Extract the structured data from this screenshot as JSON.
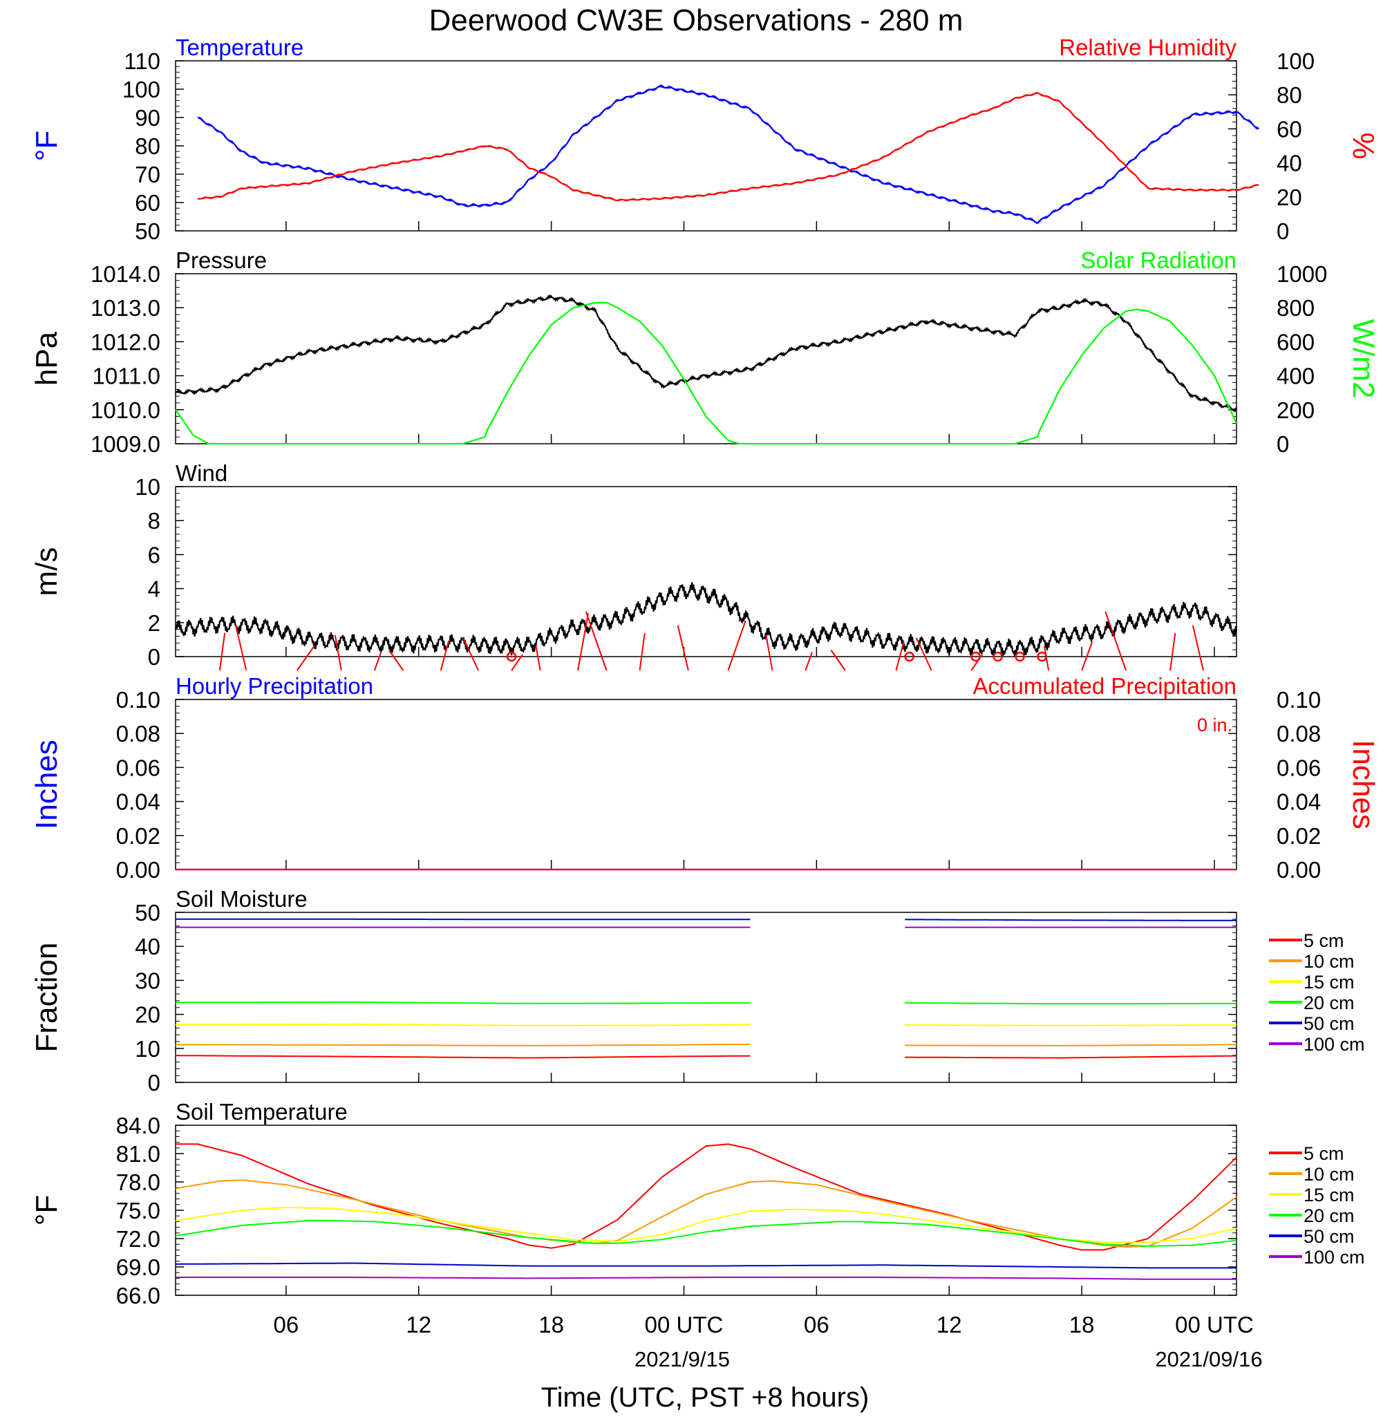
{
  "title": "Deerwood CW3E Observations - 280 m",
  "xlabel": "Time (UTC, PST +8 hours)",
  "x_ticks": [
    "06",
    "12",
    "18",
    "00 UTC",
    "06",
    "12",
    "18",
    "00 UTC"
  ],
  "x_dates": [
    "2021/9/15",
    "2021/09/16"
  ],
  "colors": {
    "blue": "#0000ff",
    "red": "#ff0000",
    "black": "#000000",
    "green": "#00ff00",
    "orange": "#ff9900",
    "yellow": "#ffff00",
    "darkblue": "#0000cc",
    "purple": "#9900cc"
  },
  "chart_data": [
    {
      "type": "line",
      "id": "temp_rh",
      "title_left": "Temperature",
      "title_right": "Relative Humidity",
      "ylabel_left": "°F",
      "ylabel_right": "%",
      "ylim": [
        50,
        110
      ],
      "y_ticks": [
        "110",
        "100",
        "90",
        "80",
        "70",
        "60",
        "50"
      ],
      "ylim_right": [
        0,
        100
      ],
      "y_ticks_right": [
        "100",
        "80",
        "60",
        "40",
        "20",
        "0"
      ],
      "x_hours": [
        1,
        2,
        3,
        4,
        6,
        8,
        10,
        12,
        13,
        14,
        15,
        16,
        17,
        18,
        20,
        22,
        24,
        26,
        28,
        30,
        32,
        34,
        36,
        37,
        38,
        39,
        40,
        42,
        44,
        46,
        48,
        49
      ],
      "series": [
        {
          "name": "Temperature",
          "axis": "left",
          "color": "#0000ff",
          "values": [
            90,
            85,
            78,
            74,
            72,
            68,
            65,
            62,
            59,
            59,
            60,
            68,
            74,
            84,
            96,
            101,
            98,
            93,
            79,
            73,
            67,
            63,
            59,
            57,
            56,
            53,
            58,
            66,
            80,
            91,
            92,
            86
          ]
        },
        {
          "name": "Relative Humidity",
          "axis": "right",
          "color": "#ff0000",
          "values": [
            19,
            20,
            25,
            26,
            28,
            35,
            40,
            44,
            47,
            50,
            48,
            37,
            32,
            24,
            18,
            19,
            21,
            25,
            28,
            33,
            43,
            58,
            68,
            72,
            78,
            81,
            76,
            51,
            25,
            24,
            24,
            27
          ]
        }
      ]
    },
    {
      "type": "line",
      "id": "pressure_solar",
      "title_left": "Pressure",
      "title_right": "Solar Radiation",
      "ylabel_left": "hPa",
      "ylabel_right": "W/m2",
      "ylim": [
        1009,
        1014
      ],
      "y_ticks": [
        "1014.0",
        "1013.0",
        "1012.0",
        "1011.0",
        "1010.0",
        "1009.0"
      ],
      "ylim_right": [
        0,
        1000
      ],
      "y_ticks_right": [
        "1000",
        "800",
        "600",
        "400",
        "200",
        "0"
      ],
      "series": [
        {
          "name": "Pressure",
          "axis": "left",
          "color": "#000000",
          "x_hours": [
            0,
            2,
            4,
            6,
            8,
            10,
            12,
            14,
            15,
            16,
            17,
            18,
            19,
            20,
            22,
            24,
            26,
            28,
            30,
            32,
            34,
            36,
            38,
            39,
            40,
            41,
            42,
            43,
            44,
            46,
            48
          ],
          "values": [
            1010.5,
            1010.6,
            1011.3,
            1011.7,
            1011.9,
            1012.1,
            1012.0,
            1012.5,
            1013.1,
            1013.2,
            1013.3,
            1013.2,
            1012.9,
            1011.8,
            1010.7,
            1011.0,
            1011.2,
            1011.8,
            1012.0,
            1012.3,
            1012.6,
            1012.4,
            1012.2,
            1012.9,
            1013.0,
            1013.2,
            1013.1,
            1012.6,
            1011.8,
            1010.4,
            1010.0
          ]
        },
        {
          "name": "Solar Radiation",
          "axis": "right",
          "color": "#00ff00",
          "x_hours": [
            0,
            0.8,
            1.5,
            13,
            14,
            14.1,
            15,
            16,
            17,
            18,
            19,
            19.5,
            20,
            21,
            22,
            23,
            24,
            25,
            25.5,
            38,
            38.1,
            39,
            39.1,
            40,
            41,
            42,
            43,
            43.5,
            44,
            45,
            46,
            47,
            48
          ],
          "values": [
            200,
            50,
            0,
            0,
            40,
            80,
            300,
            520,
            700,
            800,
            830,
            830,
            800,
            720,
            580,
            380,
            160,
            20,
            0,
            0,
            5,
            40,
            80,
            320,
            520,
            680,
            780,
            790,
            780,
            720,
            580,
            400,
            120
          ]
        }
      ]
    },
    {
      "type": "line",
      "id": "wind",
      "title_left": "Wind",
      "ylabel_left": "m/s",
      "ylim": [
        0,
        10
      ],
      "y_ticks": [
        "10",
        "8",
        "6",
        "4",
        "2",
        "0"
      ],
      "barb_color": "#ff0000",
      "series": [
        {
          "name": "Wind",
          "axis": "left",
          "color": "#000000",
          "x_hours": [
            0,
            2,
            4,
            6,
            8,
            10,
            12,
            14,
            15,
            16,
            17,
            18,
            20,
            21,
            22,
            23,
            24,
            25,
            26,
            27,
            28,
            30,
            32,
            34,
            36,
            38,
            39,
            40,
            42,
            44,
            46,
            48
          ],
          "values": [
            1.6,
            1.9,
            1.8,
            1.0,
            0.8,
            0.7,
            0.8,
            0.7,
            0.6,
            0.7,
            1.2,
            1.7,
            2.2,
            2.8,
            3.4,
            3.9,
            3.7,
            3.1,
            2.0,
            1.0,
            0.8,
            1.6,
            0.9,
            0.7,
            0.6,
            0.5,
            0.7,
            1.2,
            1.5,
            2.3,
            2.8,
            1.6
          ]
        }
      ]
    },
    {
      "type": "line",
      "id": "precip",
      "title_left": "Hourly Precipitation",
      "title_right": "Accumulated Precipitation",
      "annotation": "0 in.",
      "ylabel_left": "Inches",
      "ylabel_right": "Inches",
      "ylim": [
        0,
        0.1
      ],
      "y_ticks": [
        "0.10",
        "0.08",
        "0.06",
        "0.04",
        "0.02",
        "0.00"
      ],
      "ylim_right": [
        0,
        0.1
      ],
      "y_ticks_right": [
        "0.10",
        "0.08",
        "0.06",
        "0.04",
        "0.02",
        "0.00"
      ],
      "series": [
        {
          "name": "Hourly Precipitation",
          "axis": "left",
          "color": "#0000ff",
          "x_hours": [
            0,
            48
          ],
          "values": [
            0,
            0
          ]
        },
        {
          "name": "Accumulated Precipitation",
          "axis": "right",
          "color": "#ff0000",
          "x_hours": [
            0,
            48
          ],
          "values": [
            0,
            0
          ]
        }
      ]
    },
    {
      "type": "line",
      "id": "soil_moisture",
      "title_left": "Soil Moisture",
      "ylabel_left": "Fraction",
      "ylim": [
        0,
        50
      ],
      "y_ticks": [
        "50",
        "40",
        "30",
        "20",
        "10",
        "0"
      ],
      "legend": "right",
      "gap_hours": [
        26,
        33
      ],
      "series": [
        {
          "name": "5 cm",
          "color": "#ff0000",
          "x_hours": [
            0,
            8,
            16,
            22,
            26,
            33,
            40,
            48
          ],
          "values": [
            7.9,
            7.6,
            7.2,
            7.6,
            7.8,
            7.4,
            7.2,
            7.8
          ]
        },
        {
          "name": "10 cm",
          "color": "#ff9900",
          "x_hours": [
            0,
            8,
            16,
            22,
            26,
            33,
            40,
            48
          ],
          "values": [
            11.1,
            11.0,
            10.8,
            11.0,
            11.2,
            10.9,
            10.8,
            11.1
          ]
        },
        {
          "name": "15 cm",
          "color": "#ffff00",
          "x_hours": [
            0,
            8,
            16,
            22,
            26,
            33,
            40,
            48
          ],
          "values": [
            17.0,
            17.1,
            16.7,
            16.8,
            17.0,
            16.9,
            16.7,
            16.9
          ]
        },
        {
          "name": "20 cm",
          "color": "#00ff00",
          "x_hours": [
            0,
            8,
            16,
            22,
            26,
            33,
            40,
            48
          ],
          "values": [
            23.5,
            23.6,
            23.2,
            23.3,
            23.4,
            23.4,
            23.1,
            23.2
          ]
        },
        {
          "name": "50 cm",
          "color": "#0000cc",
          "x_hours": [
            0,
            8,
            16,
            22,
            26,
            33,
            40,
            48
          ],
          "values": [
            48.0,
            48.0,
            47.9,
            47.9,
            47.9,
            47.9,
            47.7,
            47.6
          ]
        },
        {
          "name": "100 cm",
          "color": "#9900cc",
          "x_hours": [
            0,
            8,
            16,
            22,
            26,
            33,
            40,
            48
          ],
          "values": [
            45.6,
            45.6,
            45.6,
            45.6,
            45.6,
            45.6,
            45.6,
            45.6
          ]
        }
      ]
    },
    {
      "type": "line",
      "id": "soil_temp",
      "title_left": "Soil Temperature",
      "ylabel_left": "°F",
      "ylim": [
        66,
        84
      ],
      "y_ticks": [
        "84.0",
        "81.0",
        "78.0",
        "75.0",
        "72.0",
        "69.0",
        "66.0"
      ],
      "legend": "right",
      "series": [
        {
          "name": "5 cm",
          "color": "#ff0000",
          "x_hours": [
            0,
            1,
            3,
            6,
            9,
            12,
            15,
            16,
            17,
            18,
            20,
            22,
            24,
            25,
            26,
            28,
            31,
            35,
            38,
            40,
            41,
            42,
            44,
            46,
            48
          ],
          "values": [
            82.0,
            82.0,
            80.8,
            77.8,
            75.5,
            73.6,
            72.0,
            71.3,
            71.0,
            71.4,
            74.0,
            78.5,
            81.8,
            82.0,
            81.5,
            79.5,
            76.7,
            74.5,
            72.6,
            71.3,
            70.8,
            70.8,
            72.0,
            76.0,
            80.6
          ]
        },
        {
          "name": "10 cm",
          "color": "#ff9900",
          "x_hours": [
            0,
            2,
            3,
            5,
            8,
            12,
            16,
            18,
            19,
            20,
            22,
            24,
            26,
            27,
            29,
            32,
            36,
            40,
            42,
            43,
            44,
            46,
            48
          ],
          "values": [
            77.3,
            78.1,
            78.2,
            77.7,
            76.2,
            73.9,
            72.1,
            71.6,
            71.5,
            71.8,
            74.3,
            76.7,
            78.0,
            78.1,
            77.7,
            76.0,
            73.9,
            72.0,
            71.3,
            71.1,
            71.2,
            73.1,
            76.4
          ]
        },
        {
          "name": "15 cm",
          "color": "#ffff00",
          "x_hours": [
            0,
            3,
            5,
            7,
            10,
            14,
            18,
            20,
            22,
            24,
            26,
            28,
            30,
            32,
            36,
            40,
            42,
            44,
            46,
            48
          ],
          "values": [
            73.9,
            75.0,
            75.3,
            75.2,
            74.6,
            73.2,
            71.9,
            71.7,
            72.4,
            73.9,
            74.9,
            75.1,
            75.0,
            74.6,
            73.3,
            72.0,
            71.6,
            71.6,
            72.0,
            73.1
          ]
        },
        {
          "name": "20 cm",
          "color": "#00ff00",
          "x_hours": [
            0,
            3,
            6,
            7,
            9,
            12,
            16,
            19,
            20,
            22,
            24,
            26,
            30,
            31,
            34,
            38,
            42,
            44,
            46,
            48
          ],
          "values": [
            72.3,
            73.4,
            73.9,
            73.9,
            73.8,
            73.2,
            72.1,
            71.5,
            71.5,
            71.9,
            72.7,
            73.3,
            73.8,
            73.8,
            73.5,
            72.5,
            71.4,
            71.2,
            71.3,
            71.8
          ]
        },
        {
          "name": "50 cm",
          "color": "#0000cc",
          "x_hours": [
            0,
            8,
            16,
            20,
            24,
            32,
            40,
            44,
            48
          ],
          "values": [
            69.3,
            69.4,
            69.1,
            69.1,
            69.1,
            69.2,
            69.0,
            68.9,
            68.9
          ]
        },
        {
          "name": "100 cm",
          "color": "#9900cc",
          "x_hours": [
            0,
            8,
            16,
            24,
            32,
            40,
            44,
            48
          ],
          "values": [
            67.9,
            67.9,
            67.8,
            67.9,
            67.9,
            67.8,
            67.7,
            67.7
          ]
        }
      ]
    }
  ]
}
